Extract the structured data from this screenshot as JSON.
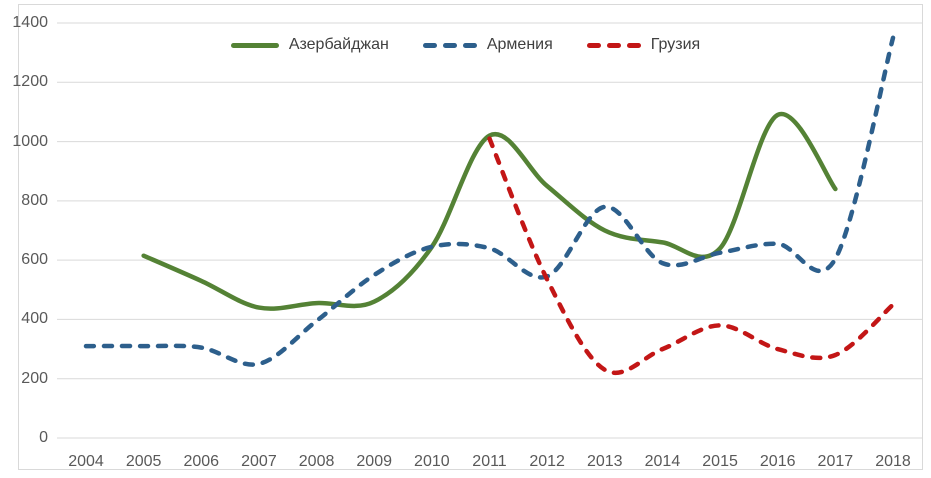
{
  "chart_data": {
    "type": "line",
    "title": "",
    "grid": true,
    "legend_position": "top-center",
    "x_axis": {
      "ticks": [
        "2004",
        "2005",
        "2006",
        "2007",
        "2008",
        "2009",
        "2010",
        "2011",
        "2012",
        "2013",
        "2014",
        "2015",
        "2016",
        "2017",
        "2018"
      ]
    },
    "y_axis": {
      "min": 0,
      "max": 1400,
      "step": 200,
      "ticks": [
        "0",
        "200",
        "400",
        "600",
        "800",
        "1000",
        "1200",
        "1400"
      ]
    },
    "series": [
      {
        "name": "Азербайджан",
        "key": "azerbaijan",
        "color": "#548235",
        "line_style": "solid",
        "values": [
          null,
          615,
          530,
          440,
          455,
          460,
          645,
          1020,
          850,
          700,
          660,
          640,
          1090,
          840,
          null
        ]
      },
      {
        "name": "Армения",
        "key": "armenia",
        "color": "#2d5f8c",
        "line_style": "dashed",
        "values": [
          310,
          310,
          305,
          250,
          395,
          550,
          645,
          640,
          545,
          780,
          590,
          625,
          655,
          605,
          1350
        ]
      },
      {
        "name": "Грузия",
        "key": "georgia",
        "color": "#c31616",
        "line_style": "dashed",
        "values": [
          null,
          null,
          null,
          null,
          null,
          null,
          null,
          1010,
          535,
          230,
          300,
          380,
          300,
          280,
          450
        ]
      }
    ]
  },
  "colors": {
    "background": "#ffffff",
    "border": "#d9d9d9",
    "gridline": "#d9d9d9",
    "axis_text": "#595959",
    "legend_text": "#404040"
  }
}
